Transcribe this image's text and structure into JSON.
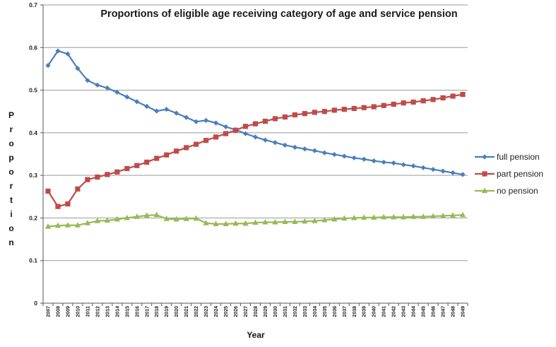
{
  "chart_data": {
    "type": "line",
    "title": "Proportions of eligible age receiving  category of  age and service pension",
    "xlabel": "Year",
    "ylabel": "Proportion",
    "ylim": [
      0,
      0.7
    ],
    "yticks": [
      "0",
      "0.1",
      "0.2",
      "0.3",
      "0.4",
      "0.5",
      "0.6",
      "0.7"
    ],
    "grid": "horizontal",
    "legend_position": "right",
    "x": [
      "2007",
      "2008",
      "2009",
      "2010",
      "2011",
      "2012",
      "2013",
      "2014",
      "2015",
      "2016",
      "2017",
      "2018",
      "2019",
      "2020",
      "2021",
      "2022",
      "2023",
      "2024",
      "2025",
      "2026",
      "2027",
      "2028",
      "2029",
      "2030",
      "2031",
      "2032",
      "2033",
      "2034",
      "2035",
      "2036",
      "2037",
      "2038",
      "2039",
      "2040",
      "2041",
      "2042",
      "2043",
      "2044",
      "2045",
      "2046",
      "2047",
      "2048",
      "2049"
    ],
    "series": [
      {
        "name": "full pension",
        "color": "#4a7ebb",
        "marker": "diamond",
        "values": [
          0.558,
          0.592,
          0.585,
          0.551,
          0.523,
          0.512,
          0.505,
          0.495,
          0.484,
          0.473,
          0.462,
          0.451,
          0.455,
          0.446,
          0.436,
          0.426,
          0.429,
          0.423,
          0.414,
          0.407,
          0.398,
          0.39,
          0.383,
          0.377,
          0.371,
          0.366,
          0.362,
          0.358,
          0.353,
          0.349,
          0.345,
          0.341,
          0.338,
          0.334,
          0.331,
          0.329,
          0.325,
          0.322,
          0.318,
          0.314,
          0.31,
          0.306,
          0.302
        ]
      },
      {
        "name": "part pension",
        "color": "#be4b48",
        "marker": "square",
        "values": [
          0.263,
          0.227,
          0.233,
          0.268,
          0.29,
          0.296,
          0.302,
          0.308,
          0.316,
          0.323,
          0.331,
          0.34,
          0.348,
          0.357,
          0.365,
          0.373,
          0.382,
          0.39,
          0.398,
          0.406,
          0.415,
          0.421,
          0.427,
          0.433,
          0.437,
          0.442,
          0.445,
          0.448,
          0.45,
          0.453,
          0.455,
          0.457,
          0.459,
          0.461,
          0.464,
          0.467,
          0.47,
          0.472,
          0.475,
          0.478,
          0.482,
          0.486,
          0.49
        ]
      },
      {
        "name": "no pension",
        "color": "#98b954",
        "marker": "triangle",
        "values": [
          0.18,
          0.182,
          0.183,
          0.183,
          0.188,
          0.193,
          0.194,
          0.197,
          0.2,
          0.203,
          0.206,
          0.207,
          0.198,
          0.197,
          0.198,
          0.199,
          0.188,
          0.186,
          0.186,
          0.187,
          0.187,
          0.189,
          0.19,
          0.19,
          0.191,
          0.191,
          0.192,
          0.193,
          0.195,
          0.197,
          0.199,
          0.2,
          0.201,
          0.201,
          0.202,
          0.202,
          0.202,
          0.203,
          0.203,
          0.204,
          0.205,
          0.206,
          0.207
        ]
      }
    ]
  }
}
